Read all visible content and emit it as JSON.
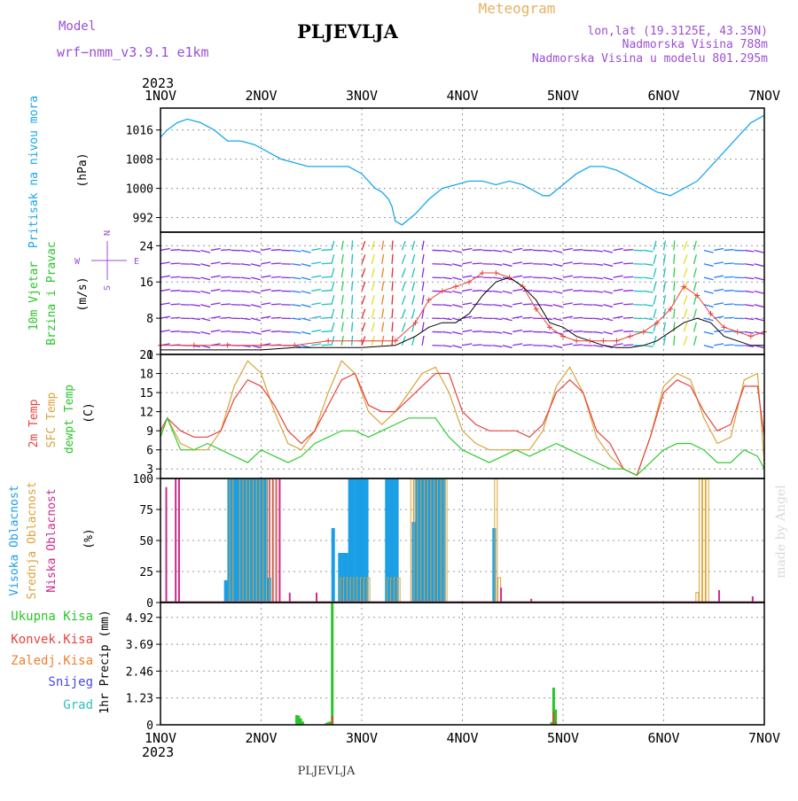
{
  "header": {
    "model_label": "Model",
    "model_name": "wrf−nmm_v3.9.1  e1km",
    "title": "PLJEVLJA",
    "meteogram": "Meteogram",
    "lonlat": "lon,lat (19.3125E, 43.35N)",
    "elev": "Nadmorska Visina 788m",
    "elev_model": "Nadmorska Visina u modelu 801.295m"
  },
  "footer": {
    "station": "PLJEVLJA"
  },
  "credit": "made by Angel",
  "time_axis": {
    "year": "2023",
    "ticks": [
      "1NOV",
      "2NOV",
      "3NOV",
      "4NOV",
      "5NOV",
      "6NOV",
      "7NOV"
    ],
    "range_days": [
      0,
      6
    ]
  },
  "colors": {
    "pressure": "#1aa7ec",
    "temp2m": "#e8413c",
    "sfc": "#d9a43a",
    "dewpt": "#2ecc2e",
    "high_cloud": "#1a9fe6",
    "mid_cloud": "#e0a030",
    "low_cloud": "#cc2b8f",
    "rain_total": "#2bc42b",
    "rain_conv": "#e8413c",
    "freezing": "#f08030",
    "snow": "#4848e0",
    "hail": "#30c0b8",
    "wind_speed": "#000000",
    "wind_gust": "#e8413c"
  },
  "chart_data": [
    {
      "type": "line",
      "name": "pressure",
      "ylabel_main": "Pritisak na nivou mora",
      "ylabel_unit": "(hPa)",
      "ylim": [
        988,
        1022
      ],
      "yticks": [
        992,
        1000,
        1008,
        1016
      ],
      "x": [
        0,
        0.1,
        0.25,
        0.4,
        0.6,
        0.8,
        1.0,
        1.2,
        1.4,
        1.6,
        1.8,
        2.0,
        2.2,
        2.4,
        2.6,
        2.8,
        3.0,
        3.2,
        3.3,
        3.4,
        3.45,
        3.5,
        3.6,
        3.8,
        4.0,
        4.2,
        4.4,
        4.6,
        4.8,
        5.0,
        5.2,
        5.4,
        5.6,
        5.7,
        5.8,
        6.0,
        6.2,
        6.4,
        6.6,
        6.8,
        7.0,
        7.2,
        7.4,
        7.6,
        7.8,
        8.0,
        8.2,
        8.4,
        8.6,
        8.8,
        9.0
      ],
      "values": [
        1014,
        1016,
        1018,
        1019,
        1018,
        1016,
        1013,
        1013,
        1012,
        1010,
        1008,
        1007,
        1006,
        1006,
        1006,
        1006,
        1004,
        1000,
        999,
        997,
        995,
        991,
        990,
        993,
        997,
        1000,
        1001,
        1002,
        1002,
        1001,
        1002,
        1001,
        999,
        998,
        998,
        1001,
        1004,
        1006,
        1006,
        1005,
        1003,
        1001,
        999,
        998,
        1000,
        1002,
        1006,
        1010,
        1014,
        1018,
        1020
      ]
    },
    {
      "type": "line",
      "name": "wind",
      "ylabel_main": "10m Vjetar",
      "ylabel_main2": "Brzina i Pravac",
      "ylabel_unit": "(m/s)",
      "compass": {
        "n": "N",
        "s": "S",
        "e": "E",
        "w": "W"
      },
      "ylim": [
        0,
        27
      ],
      "yticks": [
        0,
        8,
        16,
        24
      ],
      "x": [
        0,
        0.5,
        1,
        1.5,
        2,
        2.5,
        3,
        3.5,
        3.8,
        4.0,
        4.2,
        4.4,
        4.6,
        4.8,
        5.0,
        5.2,
        5.4,
        5.6,
        5.8,
        6.0,
        6.2,
        6.4,
        6.6,
        6.8,
        7.0,
        7.2,
        7.4,
        7.6,
        7.8,
        8.0,
        8.2,
        8.4,
        8.6,
        8.8,
        9.0
      ],
      "series": [
        {
          "name": "speed",
          "values": [
            1,
            1,
            1,
            1,
            1.5,
            1.5,
            1.5,
            2,
            4,
            6,
            7,
            7,
            9,
            13,
            16,
            17,
            15,
            12,
            7,
            6,
            4,
            3,
            2,
            1.5,
            1.5,
            2,
            3,
            5,
            7,
            8,
            7,
            4,
            3,
            2,
            2
          ]
        },
        {
          "name": "gust",
          "values": [
            2,
            2,
            2,
            2,
            2,
            3,
            3,
            3,
            7,
            12,
            14,
            15,
            16,
            18,
            18,
            17,
            15,
            10,
            6,
            4,
            3,
            3,
            3,
            3,
            4,
            5,
            7,
            10,
            15,
            13,
            9,
            6,
            5,
            4,
            5
          ]
        }
      ]
    },
    {
      "type": "line",
      "name": "temperature",
      "ylabel_a": "2m Temp",
      "ylabel_b": "SFC Temp",
      "ylabel_c": "dewpt Temp",
      "ylabel_unit": "(C)",
      "ylim": [
        1.5,
        21
      ],
      "yticks": [
        3,
        6,
        9,
        12,
        15,
        18,
        21
      ],
      "x": [
        0,
        0.1,
        0.3,
        0.5,
        0.7,
        0.9,
        1.1,
        1.3,
        1.5,
        1.7,
        1.9,
        2.1,
        2.3,
        2.5,
        2.7,
        2.9,
        3.1,
        3.3,
        3.5,
        3.7,
        3.9,
        4.1,
        4.3,
        4.5,
        4.7,
        4.9,
        5.1,
        5.3,
        5.5,
        5.7,
        5.9,
        6.1,
        6.3,
        6.5,
        6.7,
        6.9,
        7.1,
        7.3,
        7.5,
        7.7,
        7.9,
        8.1,
        8.3,
        8.5,
        8.7,
        8.9,
        9.0
      ],
      "series": [
        {
          "name": "t2m",
          "values": [
            9,
            11,
            9,
            8,
            8,
            9,
            14,
            17,
            16,
            13,
            9,
            7,
            9,
            13,
            17,
            18,
            13,
            12,
            12,
            14,
            16,
            18,
            18,
            12,
            10,
            9,
            9,
            9,
            8,
            10,
            15,
            17,
            15,
            9,
            7,
            3,
            2,
            8,
            15,
            17,
            16,
            12,
            9,
            10,
            16,
            16,
            8
          ]
        },
        {
          "name": "sfc",
          "values": [
            8,
            11,
            7,
            6,
            6,
            9,
            16,
            20,
            18,
            12,
            7,
            6,
            9,
            15,
            20,
            18,
            12,
            10,
            12,
            15,
            18,
            19,
            15,
            9,
            7,
            6,
            6,
            6,
            6,
            9,
            16,
            19,
            15,
            8,
            5,
            3,
            2,
            8,
            16,
            18,
            17,
            11,
            7,
            8,
            17,
            18,
            4
          ]
        },
        {
          "name": "dewpt",
          "values": [
            8,
            11,
            6,
            6,
            7,
            6,
            5,
            4,
            6,
            5,
            4,
            5,
            7,
            8,
            9,
            9,
            8,
            9,
            10,
            11,
            11,
            11,
            8,
            6,
            5,
            4,
            5,
            6,
            5,
            6,
            7,
            6,
            5,
            4,
            3,
            3,
            2,
            4,
            6,
            7,
            7,
            6,
            4,
            4,
            6,
            5,
            3
          ]
        }
      ]
    },
    {
      "type": "bar",
      "name": "cloud",
      "ylabel_a": "Visoka Oblacnost",
      "ylabel_b": "Srednja Oblacnost",
      "ylabel_c": "Niska Oblacnost",
      "ylabel_unit": "(%)",
      "ylim": [
        0,
        100
      ],
      "yticks": [
        0,
        25,
        50,
        75,
        100
      ],
      "x": [
        0.06,
        0.2,
        0.25,
        1.0,
        1.05,
        1.1,
        1.15,
        1.2,
        1.25,
        1.3,
        1.35,
        1.4,
        1.45,
        1.5,
        1.55,
        1.6,
        1.65,
        1.7,
        1.75,
        1.9,
        2.3,
        2.5,
        2.55,
        2.6,
        2.65,
        2.7,
        2.75,
        2.8,
        2.85,
        2.9,
        2.95,
        3.0,
        3.05,
        3.1,
        3.4,
        3.45,
        3.5,
        3.55,
        3.6,
        3.65,
        3.7,
        3.75,
        3.8,
        3.85,
        3.9,
        3.95,
        4.0,
        4.05,
        4.1,
        4.15,
        4.2,
        4.25,
        5.0,
        5.05,
        5.1,
        5.15,
        5.3,
        5.5,
        6.1,
        6.15,
        6.2,
        6.25,
        8.0,
        8.05,
        8.1,
        8.15,
        8.3,
        8.8
      ],
      "series": [
        {
          "name": "high",
          "values": [
            0,
            0,
            0,
            18,
            100,
            100,
            100,
            100,
            100,
            100,
            100,
            100,
            100,
            100,
            100,
            100,
            20,
            0,
            0,
            0,
            0,
            0,
            0,
            60,
            0,
            40,
            40,
            40,
            100,
            100,
            100,
            100,
            100,
            100,
            100,
            100,
            100,
            100,
            0,
            0,
            0,
            0,
            65,
            100,
            100,
            100,
            100,
            100,
            100,
            100,
            100,
            100,
            60,
            0,
            0,
            0,
            0,
            0,
            0,
            0,
            0,
            0,
            0,
            0,
            0,
            0,
            0,
            0
          ]
        },
        {
          "name": "mid",
          "values": [
            0,
            0,
            0,
            0,
            100,
            100,
            0,
            100,
            100,
            100,
            100,
            100,
            100,
            100,
            100,
            100,
            100,
            100,
            100,
            0,
            0,
            0,
            0,
            0,
            0,
            20,
            20,
            20,
            20,
            20,
            20,
            20,
            20,
            20,
            20,
            20,
            20,
            20,
            0,
            0,
            0,
            100,
            100,
            100,
            100,
            100,
            100,
            100,
            100,
            100,
            100,
            100,
            100,
            20,
            0,
            0,
            0,
            0,
            0,
            0,
            0,
            0,
            8,
            100,
            100,
            100,
            0,
            0
          ]
        },
        {
          "name": "low",
          "values": [
            93,
            100,
            100,
            0,
            100,
            100,
            100,
            100,
            100,
            100,
            100,
            100,
            100,
            100,
            100,
            100,
            100,
            100,
            100,
            8,
            8,
            0,
            0,
            0,
            0,
            0,
            0,
            0,
            0,
            0,
            0,
            0,
            0,
            0,
            0,
            0,
            88,
            0,
            0,
            0,
            0,
            0,
            0,
            0,
            0,
            0,
            0,
            0,
            0,
            0,
            0,
            0,
            0,
            12,
            0,
            0,
            0,
            3,
            0,
            0,
            0,
            0,
            0,
            0,
            0,
            0,
            10,
            5
          ]
        }
      ]
    },
    {
      "type": "bar",
      "name": "precip",
      "ylabel_unit": "1hr Precip (mm)",
      "legend": [
        "Ukupna Kisa",
        "Konvek.Kisa",
        "Zaledj.Kisa",
        "Snijeg",
        "Grad"
      ],
      "ylim": [
        0,
        5.6
      ],
      "yticks": [
        0,
        1.23,
        2.46,
        3.69,
        4.92
      ],
      "ytick_labels": [
        "0",
        "1.23",
        "2.46",
        "3.69",
        "4.92"
      ],
      "x": [
        2.03,
        2.06,
        2.09,
        2.12,
        2.47,
        2.5,
        2.53,
        2.56,
        3.5,
        3.53,
        3.56,
        3.59,
        5.83,
        5.86,
        5.89
      ],
      "series": [
        {
          "name": "total",
          "values": [
            0.45,
            0.42,
            0.3,
            0.15,
            0.08,
            0.12,
            0.15,
            5.6,
            0,
            0,
            0,
            0,
            0.12,
            1.7,
            0.7
          ]
        },
        {
          "name": "convective",
          "values": [
            0,
            0,
            0,
            0,
            0,
            0,
            0,
            0.4,
            0,
            0,
            0,
            0,
            0,
            0.6,
            0.1
          ]
        }
      ]
    }
  ]
}
